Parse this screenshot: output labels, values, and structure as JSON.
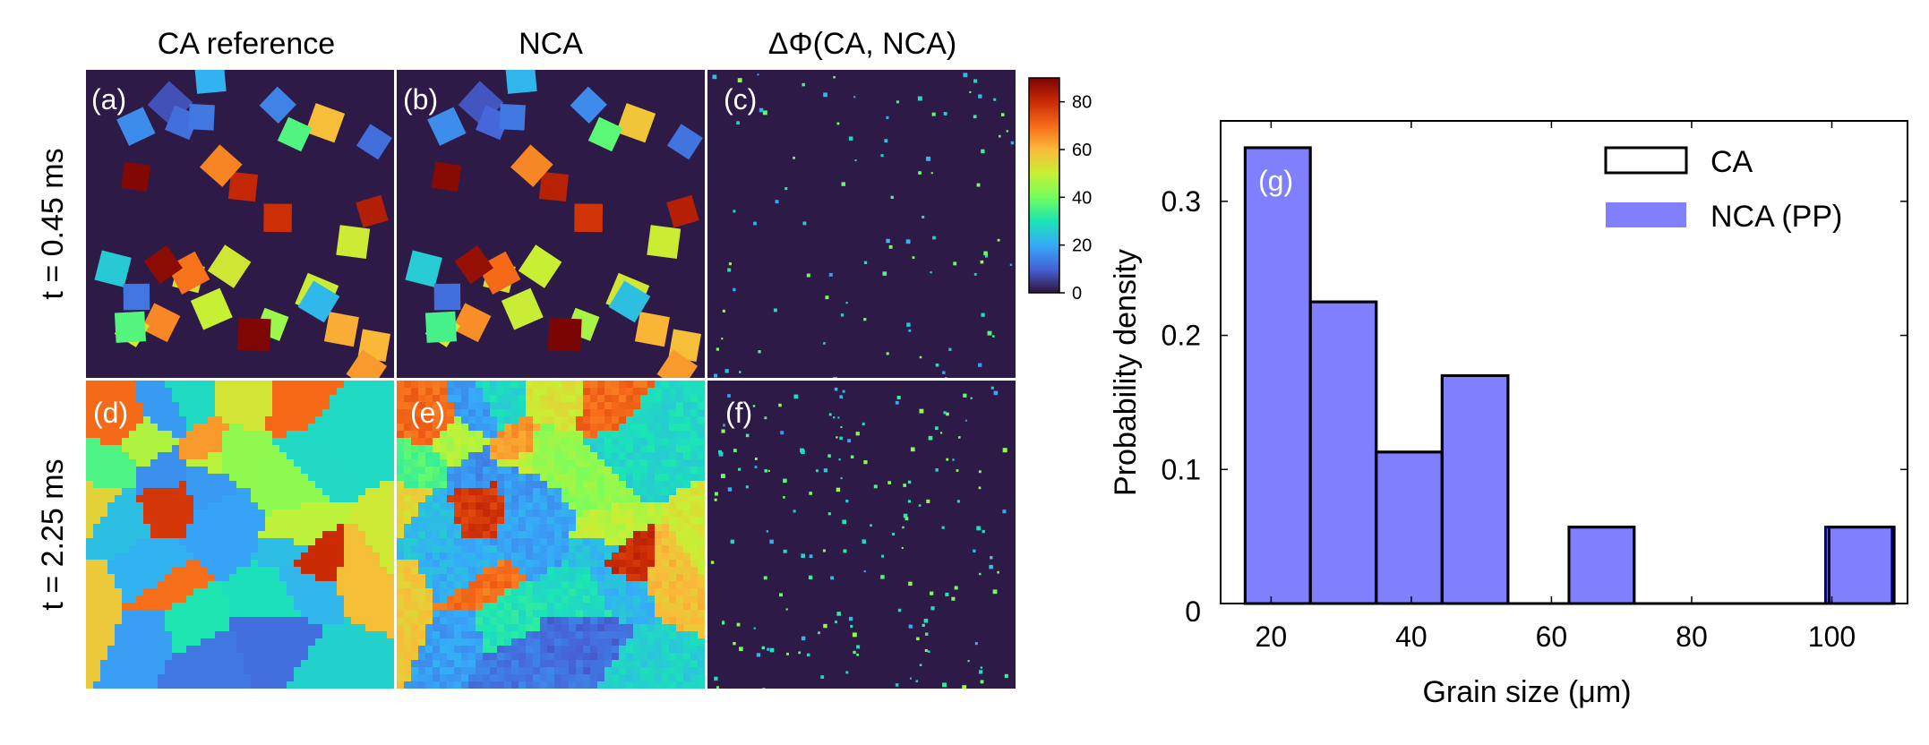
{
  "figure": {
    "column_titles": [
      "CA reference",
      "NCA",
      "ΔΦ(CA, NCA)"
    ],
    "row_labels": [
      "t = 0.45 ms",
      "t = 2.25 ms"
    ],
    "panel_labels": [
      "(a)",
      "(b)",
      "(c)",
      "(d)",
      "(e)",
      "(f)"
    ]
  },
  "colorbar": {
    "ticks": [
      0,
      20,
      40,
      60,
      80
    ],
    "range": [
      0,
      90
    ],
    "colormap": "turbo",
    "stops": [
      "#30123b",
      "#4662d7",
      "#36aaf9",
      "#1ae4b6",
      "#72fe5e",
      "#c8ef34",
      "#faba39",
      "#f66b19",
      "#ca2a04",
      "#7a0403"
    ]
  },
  "colors": {
    "background_dark": "#2e1a47",
    "hist_fill": "#8080ff",
    "hist_edge": "#000080",
    "ca_edge": "#000000"
  },
  "chart_data": {
    "type": "histogram",
    "panel_label": "(g)",
    "xlabel": "Grain size (μm)",
    "ylabel": "Probability density",
    "xlim": [
      12.8,
      110.8
    ],
    "ylim": [
      0,
      0.36
    ],
    "xticks": [
      20,
      40,
      60,
      80,
      100
    ],
    "yticks": [
      0,
      0.1,
      0.2,
      0.3
    ],
    "ytick_labels": [
      "0",
      "0.1",
      "0.2",
      "0.3"
    ],
    "legend_position": "top-right",
    "series": [
      {
        "name": "CA",
        "style": "step-outline",
        "bins": [
          {
            "x0": 16.3,
            "x1": 25.6,
            "value": 0.34
          },
          {
            "x0": 25.6,
            "x1": 35.0,
            "value": 0.225
          },
          {
            "x0": 35.0,
            "x1": 44.4,
            "value": 0.113
          },
          {
            "x0": 44.4,
            "x1": 53.8,
            "value": 0.17
          },
          {
            "x0": 62.5,
            "x1": 71.8,
            "value": 0.057
          },
          {
            "x0": 99.6,
            "x1": 108.9,
            "value": 0.057
          }
        ]
      },
      {
        "name": "NCA (PP)",
        "style": "filled",
        "bins": [
          {
            "x0": 16.3,
            "x1": 25.6,
            "value": 0.34
          },
          {
            "x0": 25.6,
            "x1": 35.0,
            "value": 0.225
          },
          {
            "x0": 35.0,
            "x1": 44.4,
            "value": 0.113
          },
          {
            "x0": 44.4,
            "x1": 53.8,
            "value": 0.17
          },
          {
            "x0": 62.5,
            "x1": 71.8,
            "value": 0.057
          },
          {
            "x0": 99.1,
            "x1": 108.6,
            "value": 0.057
          }
        ]
      }
    ]
  }
}
